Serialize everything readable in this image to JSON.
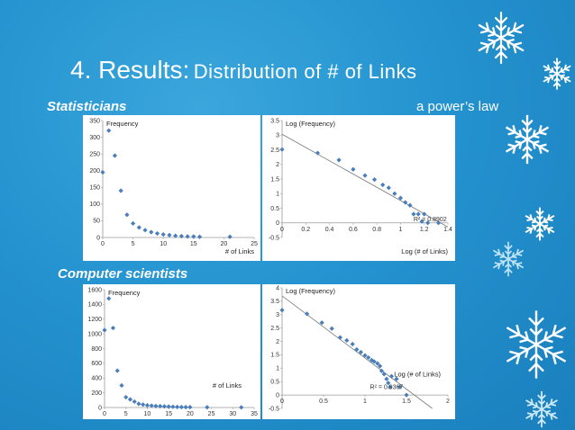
{
  "slide": {
    "title_main": "4. Results:",
    "title_sub": "Distribution of # of Links",
    "label_top": "Statisticians",
    "label_right": "a power’s law",
    "label_bottom": "Computer scientists",
    "background_color": "#2493cf",
    "decoration": "snowflake-icon"
  },
  "chart_data": [
    {
      "type": "scatter",
      "ylabel": "Frequency",
      "xlabel": "# of Links",
      "xlim": [
        0,
        25
      ],
      "ylim": [
        0,
        350
      ],
      "xticks": [
        "0",
        "5",
        "10",
        "15",
        "20",
        "25"
      ],
      "yticks": [
        "0",
        "50",
        "100",
        "150",
        "200",
        "250",
        "300",
        "350"
      ],
      "color": "#4a7ebb",
      "points": [
        [
          0,
          195
        ],
        [
          1,
          320
        ],
        [
          2,
          245
        ],
        [
          3,
          140
        ],
        [
          4,
          68
        ],
        [
          5,
          42
        ],
        [
          6,
          30
        ],
        [
          7,
          22
        ],
        [
          8,
          16
        ],
        [
          9,
          12
        ],
        [
          10,
          9
        ],
        [
          11,
          7
        ],
        [
          12,
          5
        ],
        [
          13,
          4
        ],
        [
          14,
          3
        ],
        [
          15,
          3
        ],
        [
          16,
          2
        ],
        [
          21,
          2
        ]
      ]
    },
    {
      "type": "scatter",
      "ylabel": "Log (Frequency)",
      "xlabel": "Log (# of Links)",
      "xlim": [
        0,
        1.4
      ],
      "ylim": [
        -0.5,
        3.5
      ],
      "xticks": [
        "0",
        "0.2",
        "0.4",
        "0.6",
        "0.8",
        "1",
        "1.2",
        "1.4"
      ],
      "yticks": [
        "-0.5",
        "0",
        "0.5",
        "1",
        "1.5",
        "2",
        "2.5",
        "3",
        "3.5"
      ],
      "trendline": true,
      "r2_label": "R² = 0.8902",
      "color": "#4a7ebb",
      "points": [
        [
          0,
          2.51
        ],
        [
          0.3,
          2.39
        ],
        [
          0.48,
          2.15
        ],
        [
          0.6,
          1.83
        ],
        [
          0.7,
          1.62
        ],
        [
          0.78,
          1.48
        ],
        [
          0.85,
          1.3
        ],
        [
          0.9,
          1.2
        ],
        [
          0.95,
          1.0
        ],
        [
          1.0,
          0.85
        ],
        [
          1.04,
          0.7
        ],
        [
          1.08,
          0.6
        ],
        [
          1.11,
          0.3
        ],
        [
          1.15,
          0.3
        ],
        [
          1.18,
          0.05
        ],
        [
          1.2,
          0.3
        ],
        [
          1.23,
          0.0
        ],
        [
          1.32,
          0.0
        ]
      ]
    },
    {
      "type": "scatter",
      "ylabel": "Frequency",
      "xlabel": "# of Links",
      "xlim": [
        0,
        35
      ],
      "ylim": [
        0,
        1600
      ],
      "xticks": [
        "0",
        "5",
        "10",
        "15",
        "20",
        "25",
        "30",
        "35"
      ],
      "yticks": [
        "0",
        "200",
        "400",
        "600",
        "800",
        "1000",
        "1200",
        "1400",
        "1600"
      ],
      "color": "#4a7ebb",
      "points": [
        [
          0,
          1050
        ],
        [
          1,
          1480
        ],
        [
          2,
          1080
        ],
        [
          3,
          500
        ],
        [
          4,
          300
        ],
        [
          5,
          140
        ],
        [
          6,
          110
        ],
        [
          7,
          80
        ],
        [
          8,
          50
        ],
        [
          9,
          40
        ],
        [
          10,
          30
        ],
        [
          11,
          25
        ],
        [
          12,
          20
        ],
        [
          13,
          18
        ],
        [
          14,
          15
        ],
        [
          15,
          12
        ],
        [
          16,
          10
        ],
        [
          17,
          8
        ],
        [
          18,
          6
        ],
        [
          19,
          5
        ],
        [
          20,
          5
        ],
        [
          24,
          3
        ],
        [
          32,
          2
        ]
      ]
    },
    {
      "type": "scatter",
      "ylabel": "Log (Frequency)",
      "xlabel": "Log (# of Links)",
      "xlim": [
        0,
        2
      ],
      "ylim": [
        -0.5,
        4
      ],
      "xticks": [
        "0",
        "0.5",
        "1",
        "1.5",
        "2"
      ],
      "yticks": [
        "-0.5",
        "0",
        "0.5",
        "1",
        "1.5",
        "2",
        "2.5",
        "3",
        "3.5",
        "4"
      ],
      "trendline": true,
      "r2_label": "R² = 0.9367",
      "color": "#4a7ebb",
      "points": [
        [
          0,
          3.17
        ],
        [
          0.3,
          3.03
        ],
        [
          0.48,
          2.7
        ],
        [
          0.6,
          2.48
        ],
        [
          0.7,
          2.15
        ],
        [
          0.78,
          2.04
        ],
        [
          0.85,
          1.9
        ],
        [
          0.9,
          1.7
        ],
        [
          0.95,
          1.6
        ],
        [
          1.0,
          1.48
        ],
        [
          1.04,
          1.4
        ],
        [
          1.08,
          1.3
        ],
        [
          1.11,
          1.25
        ],
        [
          1.15,
          1.18
        ],
        [
          1.18,
          1.08
        ],
        [
          1.2,
          0.9
        ],
        [
          1.23,
          0.78
        ],
        [
          1.26,
          0.6
        ],
        [
          1.28,
          0.45
        ],
        [
          1.3,
          0.3
        ],
        [
          1.32,
          0.7
        ],
        [
          1.38,
          0.6
        ],
        [
          1.42,
          0.3
        ],
        [
          1.5,
          0.0
        ]
      ]
    }
  ]
}
